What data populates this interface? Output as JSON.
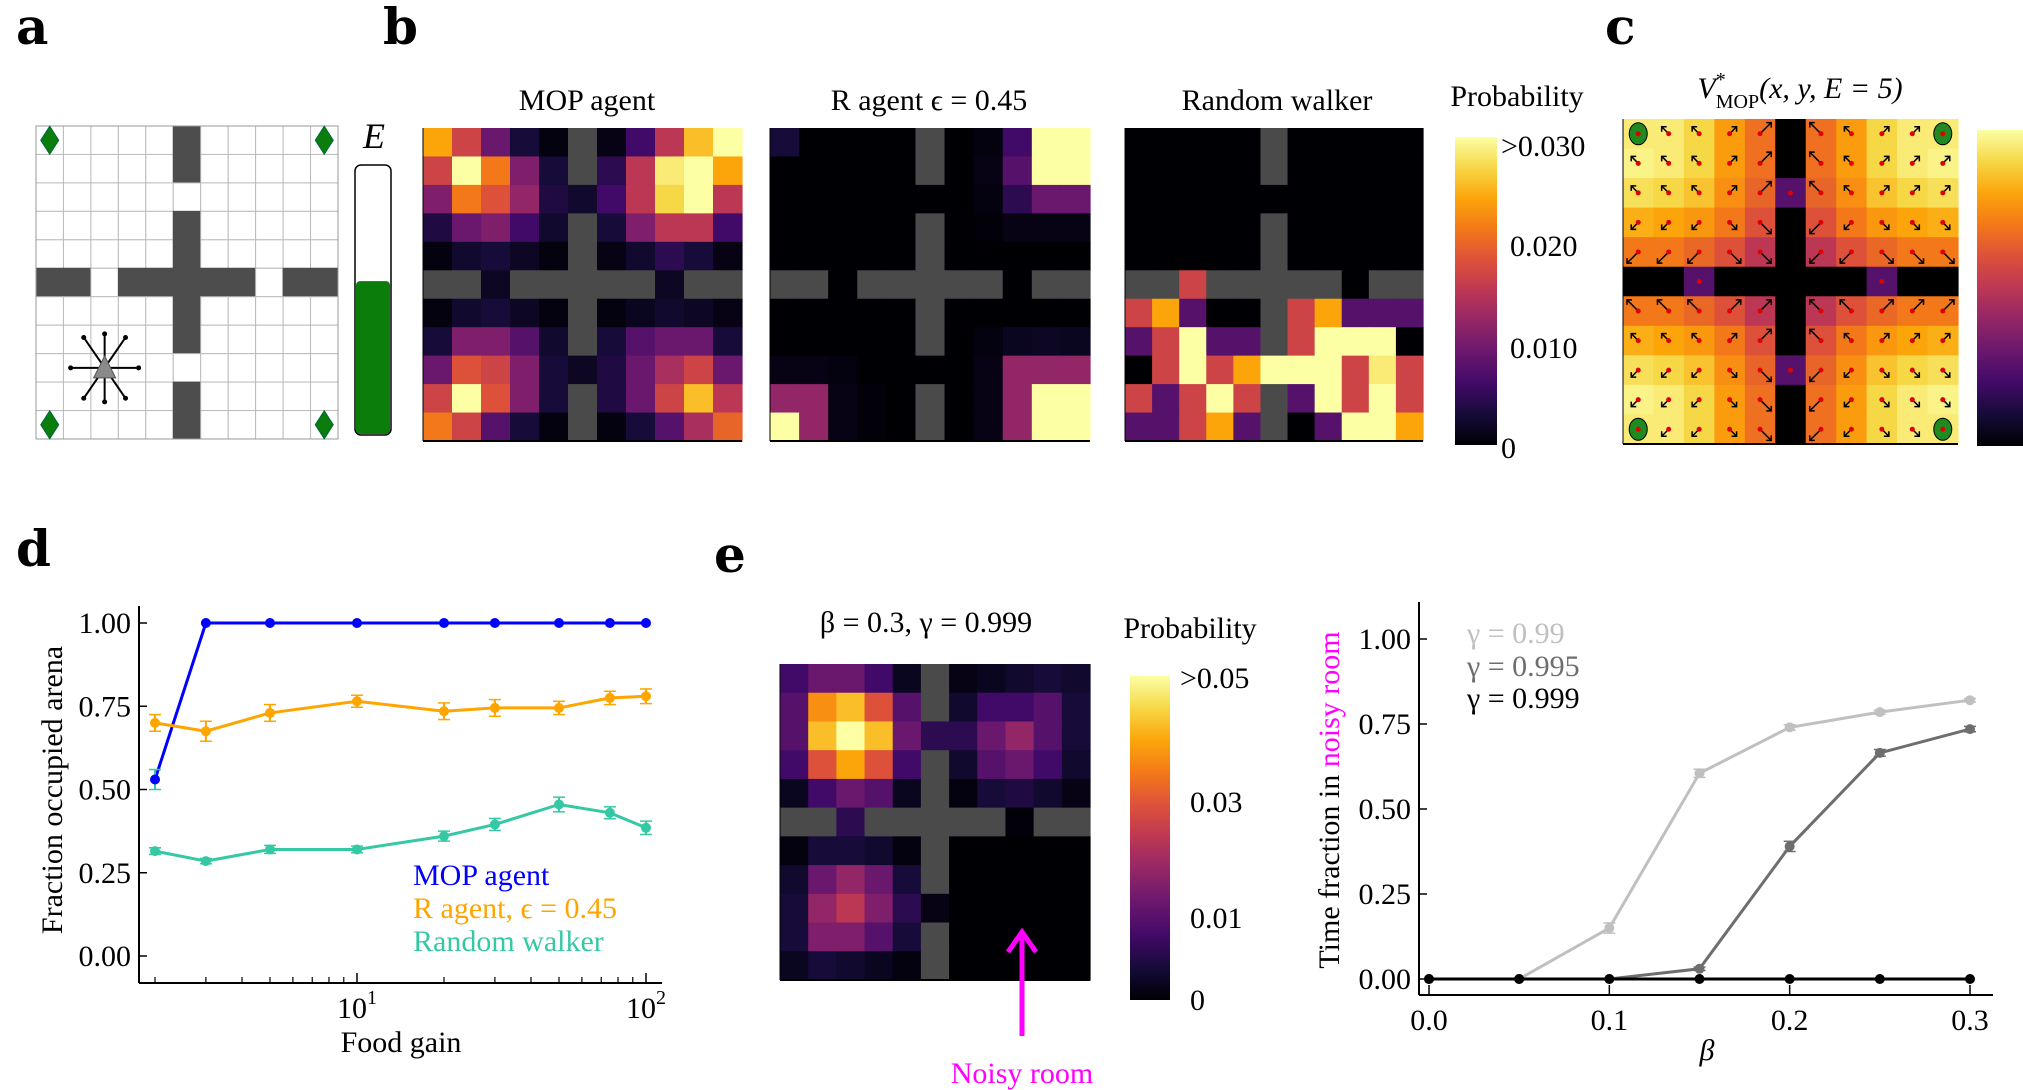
{
  "panel_labels": {
    "a": "a",
    "b": "b",
    "c": "c",
    "d": "d",
    "e": "e"
  },
  "panel_a": {
    "energy_label": "E",
    "energy_level": 0.57,
    "grid_size": 11,
    "colors": {
      "wall": "#4d4d4d",
      "food": "#0a7d0a",
      "energy": "#0a7d0a",
      "agent": "#8a8a8a"
    }
  },
  "panel_b": {
    "titles": [
      "MOP agent",
      "R agent ϵ = 0.45",
      "Random walker"
    ],
    "colorbar": {
      "title": "Probability",
      "ticks": [
        ">0.030",
        "0.020",
        "0.010",
        "0"
      ],
      "vmax": 0.03
    },
    "wall_color": "#4a4a4a",
    "heatmaps_normalized": {
      "mop": [
        [
          0.8,
          0.55,
          0.3,
          0.1,
          0.02,
          null,
          0.03,
          0.2,
          0.5,
          0.85,
          1
        ],
        [
          0.55,
          1,
          0.7,
          0.35,
          0.1,
          null,
          0.15,
          0.5,
          0.95,
          1,
          0.8
        ],
        [
          0.35,
          0.7,
          0.6,
          0.4,
          0.12,
          0.08,
          0.2,
          0.5,
          0.9,
          1,
          0.5
        ],
        [
          0.12,
          0.3,
          0.35,
          0.2,
          0.08,
          null,
          0.1,
          0.35,
          0.5,
          0.5,
          0.2
        ],
        [
          0.02,
          0.08,
          0.1,
          0.06,
          0.02,
          null,
          0.03,
          0.08,
          0.15,
          0.1,
          0.03
        ],
        [
          null,
          null,
          0.06,
          null,
          null,
          null,
          null,
          null,
          0.06,
          null,
          null
        ],
        [
          0.02,
          0.08,
          0.1,
          0.06,
          0.02,
          null,
          0.02,
          0.05,
          0.08,
          0.06,
          0.03
        ],
        [
          0.1,
          0.35,
          0.35,
          0.25,
          0.08,
          null,
          0.1,
          0.25,
          0.3,
          0.3,
          0.1
        ],
        [
          0.3,
          0.6,
          0.55,
          0.35,
          0.1,
          0.06,
          0.12,
          0.3,
          0.45,
          0.55,
          0.3
        ],
        [
          0.55,
          1,
          0.6,
          0.35,
          0.1,
          null,
          0.12,
          0.3,
          0.55,
          0.85,
          0.5
        ],
        [
          0.7,
          0.55,
          0.25,
          0.1,
          0.02,
          null,
          0.02,
          0.1,
          0.25,
          0.45,
          0.65
        ]
      ],
      "r_agent": [
        [
          0.1,
          0,
          0,
          0,
          0,
          null,
          0,
          0.02,
          0.2,
          1,
          1
        ],
        [
          0,
          0,
          0,
          0,
          0,
          null,
          0,
          0.03,
          0.25,
          1,
          1
        ],
        [
          0,
          0,
          0,
          0,
          0,
          0,
          0,
          0.02,
          0.15,
          0.3,
          0.3
        ],
        [
          0,
          0,
          0,
          0,
          0,
          null,
          0,
          0.01,
          0.03,
          0.03,
          0.03
        ],
        [
          0,
          0,
          0,
          0,
          0,
          null,
          0,
          0,
          0,
          0,
          0
        ],
        [
          null,
          null,
          0,
          null,
          null,
          null,
          null,
          null,
          0,
          null,
          null
        ],
        [
          0,
          0,
          0,
          0,
          0,
          null,
          0,
          0,
          0,
          0,
          0
        ],
        [
          0,
          0,
          0,
          0,
          0,
          null,
          0,
          0.02,
          0.05,
          0.06,
          0.05
        ],
        [
          0.03,
          0.03,
          0.02,
          0,
          0,
          0,
          0,
          0.03,
          0.4,
          0.4,
          0.4
        ],
        [
          0.4,
          0.4,
          0.03,
          0.01,
          0,
          null,
          0,
          0.03,
          0.4,
          1,
          1
        ],
        [
          1,
          0.4,
          0.03,
          0.01,
          0,
          null,
          0,
          0.03,
          0.4,
          1,
          1
        ]
      ],
      "random_walker": [
        [
          0,
          0,
          0,
          0,
          0,
          null,
          0,
          0,
          0,
          0,
          0
        ],
        [
          0,
          0,
          0,
          0,
          0,
          null,
          0,
          0,
          0,
          0,
          0
        ],
        [
          0,
          0,
          0,
          0,
          0,
          0,
          0,
          0,
          0,
          0,
          0
        ],
        [
          0,
          0,
          0,
          0,
          0,
          null,
          0,
          0,
          0,
          0,
          0
        ],
        [
          0,
          0,
          0,
          0,
          0,
          null,
          0,
          0,
          0,
          0,
          0
        ],
        [
          null,
          null,
          0.55,
          null,
          null,
          null,
          null,
          null,
          0,
          null,
          null
        ],
        [
          0.55,
          0.8,
          0.25,
          0,
          0,
          null,
          0.55,
          0.8,
          0.25,
          0.25,
          0.25
        ],
        [
          0.25,
          0.55,
          1,
          0.25,
          0.25,
          null,
          0.55,
          1,
          1,
          1,
          0
        ],
        [
          0,
          0.55,
          1,
          0.55,
          0.8,
          1,
          1,
          1,
          0.55,
          0.95,
          0.55
        ],
        [
          0.55,
          0.25,
          0.55,
          1,
          0.55,
          null,
          0.25,
          1,
          0.55,
          1,
          0.55
        ],
        [
          0.25,
          0.25,
          0.55,
          0.8,
          0.25,
          null,
          0,
          0.25,
          1,
          1,
          0.8
        ]
      ]
    }
  },
  "panel_c": {
    "title": {
      "main": "V",
      "sup": "*",
      "sub": "MOP",
      "args": "(x, y, E = 5)"
    },
    "wall_color": "#000000",
    "values_normalized": [
      [
        0.95,
        0.95,
        0.9,
        0.78,
        0.68,
        null,
        0.68,
        0.78,
        0.9,
        0.95,
        0.95
      ],
      [
        0.97,
        0.95,
        0.9,
        0.78,
        0.68,
        null,
        0.68,
        0.78,
        0.9,
        0.95,
        0.97
      ],
      [
        0.92,
        0.9,
        0.86,
        0.75,
        0.65,
        0.25,
        0.65,
        0.75,
        0.86,
        0.9,
        0.92
      ],
      [
        0.82,
        0.8,
        0.77,
        0.7,
        0.6,
        null,
        0.6,
        0.7,
        0.77,
        0.8,
        0.82
      ],
      [
        0.7,
        0.7,
        0.66,
        0.6,
        0.5,
        null,
        0.5,
        0.6,
        0.66,
        0.7,
        0.7
      ],
      [
        null,
        null,
        0.25,
        null,
        null,
        null,
        null,
        null,
        0.25,
        null,
        null
      ],
      [
        0.7,
        0.7,
        0.66,
        0.6,
        0.5,
        null,
        0.5,
        0.6,
        0.66,
        0.7,
        0.7
      ],
      [
        0.82,
        0.8,
        0.77,
        0.7,
        0.6,
        null,
        0.6,
        0.7,
        0.77,
        0.8,
        0.82
      ],
      [
        0.92,
        0.9,
        0.86,
        0.75,
        0.65,
        0.25,
        0.65,
        0.75,
        0.86,
        0.9,
        0.92
      ],
      [
        0.97,
        0.95,
        0.9,
        0.78,
        0.68,
        null,
        0.68,
        0.78,
        0.9,
        0.95,
        0.97
      ],
      [
        0.95,
        0.95,
        0.9,
        0.78,
        0.68,
        null,
        0.68,
        0.78,
        0.9,
        0.95,
        0.95
      ]
    ]
  },
  "panel_e_heatmap": {
    "title": "β = 0.3, γ = 0.999",
    "colorbar": {
      "title": "Probability",
      "ticks": [
        ">0.05",
        "0.03",
        "0.01",
        "0"
      ],
      "vmax": 0.05
    },
    "annotation": "Noisy room",
    "annotation_color": "#ff00ff",
    "values_normalized": [
      [
        0.2,
        0.3,
        0.3,
        0.2,
        0.05,
        null,
        0.03,
        0.05,
        0.08,
        0.1,
        0.08
      ],
      [
        0.25,
        0.75,
        0.85,
        0.6,
        0.25,
        null,
        0.08,
        0.2,
        0.2,
        0.25,
        0.1
      ],
      [
        0.25,
        0.85,
        1,
        0.85,
        0.3,
        0.15,
        0.15,
        0.3,
        0.4,
        0.25,
        0.1
      ],
      [
        0.2,
        0.6,
        0.8,
        0.6,
        0.2,
        null,
        0.08,
        0.25,
        0.3,
        0.2,
        0.08
      ],
      [
        0.05,
        0.2,
        0.3,
        0.25,
        0.05,
        null,
        0.02,
        0.1,
        0.12,
        0.08,
        0.03
      ],
      [
        null,
        null,
        0.15,
        null,
        null,
        null,
        null,
        null,
        0.01,
        null,
        null
      ],
      [
        0.02,
        0.1,
        0.1,
        0.08,
        0.02,
        null,
        0,
        0,
        0,
        0,
        0
      ],
      [
        0.08,
        0.3,
        0.4,
        0.3,
        0.1,
        null,
        0,
        0,
        0,
        0,
        0
      ],
      [
        0.1,
        0.4,
        0.5,
        0.35,
        0.15,
        0.03,
        0,
        0,
        0,
        0,
        0
      ],
      [
        0.1,
        0.35,
        0.35,
        0.25,
        0.1,
        null,
        0,
        0,
        0,
        0,
        0
      ],
      [
        0.05,
        0.1,
        0.08,
        0.05,
        0.02,
        null,
        0,
        0,
        0,
        0,
        0
      ]
    ]
  },
  "chart_data": [
    {
      "panel": "d",
      "type": "line",
      "xlabel": "Food gain",
      "ylabel": "Fraction occupied arena",
      "xscale": "log",
      "xlim": [
        2,
        100
      ],
      "ylim": [
        0,
        1.05
      ],
      "xticks": [
        "10^1",
        "10^2"
      ],
      "yticks": [
        "0.00",
        "0.25",
        "0.50",
        "0.75",
        "1.00"
      ],
      "x": [
        2,
        3,
        5,
        10,
        20,
        30,
        50,
        75,
        100
      ],
      "legend_position": "bottom-right",
      "series": [
        {
          "name": "MOP agent",
          "color": "#0000ff",
          "values": [
            0.53,
            1.0,
            1.0,
            1.0,
            1.0,
            1.0,
            1.0,
            1.0,
            1.0
          ],
          "yerr": [
            0.03,
            0,
            0,
            0,
            0,
            0,
            0,
            0,
            0
          ]
        },
        {
          "name": "R agent, ϵ = 0.45",
          "color": "#ffa500",
          "values": [
            0.7,
            0.675,
            0.73,
            0.765,
            0.735,
            0.745,
            0.745,
            0.775,
            0.78
          ],
          "yerr": [
            0.025,
            0.03,
            0.025,
            0.018,
            0.025,
            0.025,
            0.02,
            0.02,
            0.022
          ]
        },
        {
          "name": "Random walker",
          "color": "#35c8a5",
          "values": [
            0.315,
            0.285,
            0.32,
            0.32,
            0.36,
            0.395,
            0.455,
            0.43,
            0.385
          ],
          "yerr": [
            0.01,
            0.008,
            0.012,
            0.01,
            0.015,
            0.018,
            0.022,
            0.018,
            0.02
          ]
        }
      ]
    },
    {
      "panel": "e",
      "type": "line",
      "xlabel": "β",
      "ylabel_parts": [
        "Time fraction in ",
        "noisy room"
      ],
      "ylabel_colors": [
        "#000000",
        "#ff00ff"
      ],
      "xlim": [
        0,
        0.3
      ],
      "ylim": [
        0,
        1.05
      ],
      "xticks": [
        "0.0",
        "0.1",
        "0.2",
        "0.3"
      ],
      "yticks": [
        "0.00",
        "0.25",
        "0.50",
        "0.75",
        "1.00"
      ],
      "x": [
        0,
        0.05,
        0.1,
        0.15,
        0.2,
        0.25,
        0.3
      ],
      "legend_position": "top-left",
      "series": [
        {
          "name": "γ = 0.99",
          "color": "#c0c0c0",
          "values": [
            0,
            0,
            0.15,
            0.605,
            0.74,
            0.785,
            0.82
          ],
          "yerr": [
            0,
            0.003,
            0.015,
            0.012,
            0.008,
            0.006,
            0.005
          ]
        },
        {
          "name": "γ = 0.995",
          "color": "#6e6e6e",
          "values": [
            0,
            0,
            0,
            0.03,
            0.39,
            0.665,
            0.735
          ],
          "yerr": [
            0,
            0,
            0,
            0.005,
            0.015,
            0.01,
            0.008
          ]
        },
        {
          "name": "γ = 0.999",
          "color": "#000000",
          "values": [
            0,
            0,
            0,
            0,
            0,
            0,
            0
          ],
          "yerr": [
            0,
            0,
            0,
            0,
            0,
            0,
            0
          ]
        }
      ]
    }
  ]
}
